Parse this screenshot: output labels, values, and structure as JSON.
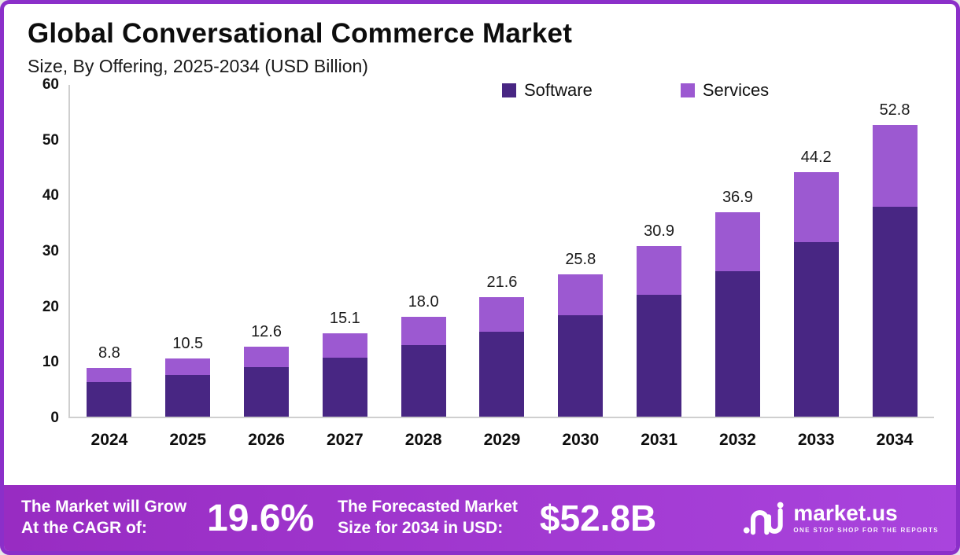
{
  "header": {
    "title": "Global Conversational Commerce Market",
    "subtitle": "Size, By Offering, 2025-2034 (USD Billion)"
  },
  "chart_data": {
    "type": "bar",
    "stacked": true,
    "title": "Global Conversational Commerce Market",
    "subtitle": "Size, By Offering, 2025-2034 (USD Billion)",
    "categories": [
      "2024",
      "2025",
      "2026",
      "2027",
      "2028",
      "2029",
      "2030",
      "2031",
      "2032",
      "2033",
      "2034"
    ],
    "series": [
      {
        "name": "Software",
        "values": [
          6.3,
          7.6,
          9.0,
          10.7,
          12.9,
          15.4,
          18.4,
          22.0,
          26.3,
          31.5,
          37.9
        ]
      },
      {
        "name": "Services",
        "values": [
          2.5,
          2.9,
          3.6,
          4.4,
          5.1,
          6.2,
          7.4,
          8.9,
          10.6,
          12.7,
          14.9
        ]
      }
    ],
    "totals": [
      8.8,
      10.5,
      12.6,
      15.1,
      18.0,
      21.6,
      25.8,
      30.9,
      36.9,
      44.2,
      52.8
    ],
    "total_labels": [
      "8.8",
      "10.5",
      "12.6",
      "15.1",
      "18.0",
      "21.6",
      "25.8",
      "30.9",
      "36.9",
      "44.2",
      "52.8"
    ],
    "xlabel": "",
    "ylabel": "USD Billion",
    "ylim": [
      0,
      60
    ],
    "yticks": [
      0,
      10,
      20,
      30,
      40,
      50,
      60
    ],
    "grid": false,
    "legend_position": "top"
  },
  "banner": {
    "cagr_label_line1": "The Market will Grow",
    "cagr_label_line2": "At the CAGR of:",
    "cagr_value": "19.6%",
    "forecast_label_line1": "The Forecasted Market",
    "forecast_label_line2": "Size for 2034 in USD:",
    "forecast_value": "$52.8B",
    "brand_name": "market.us",
    "brand_tagline": "ONE STOP SHOP FOR THE REPORTS"
  },
  "colors": {
    "software": "#482683",
    "services": "#9c59d1",
    "border": "#8b2fc9",
    "banner_from": "#982cc2",
    "banner_to": "#a944dd"
  }
}
